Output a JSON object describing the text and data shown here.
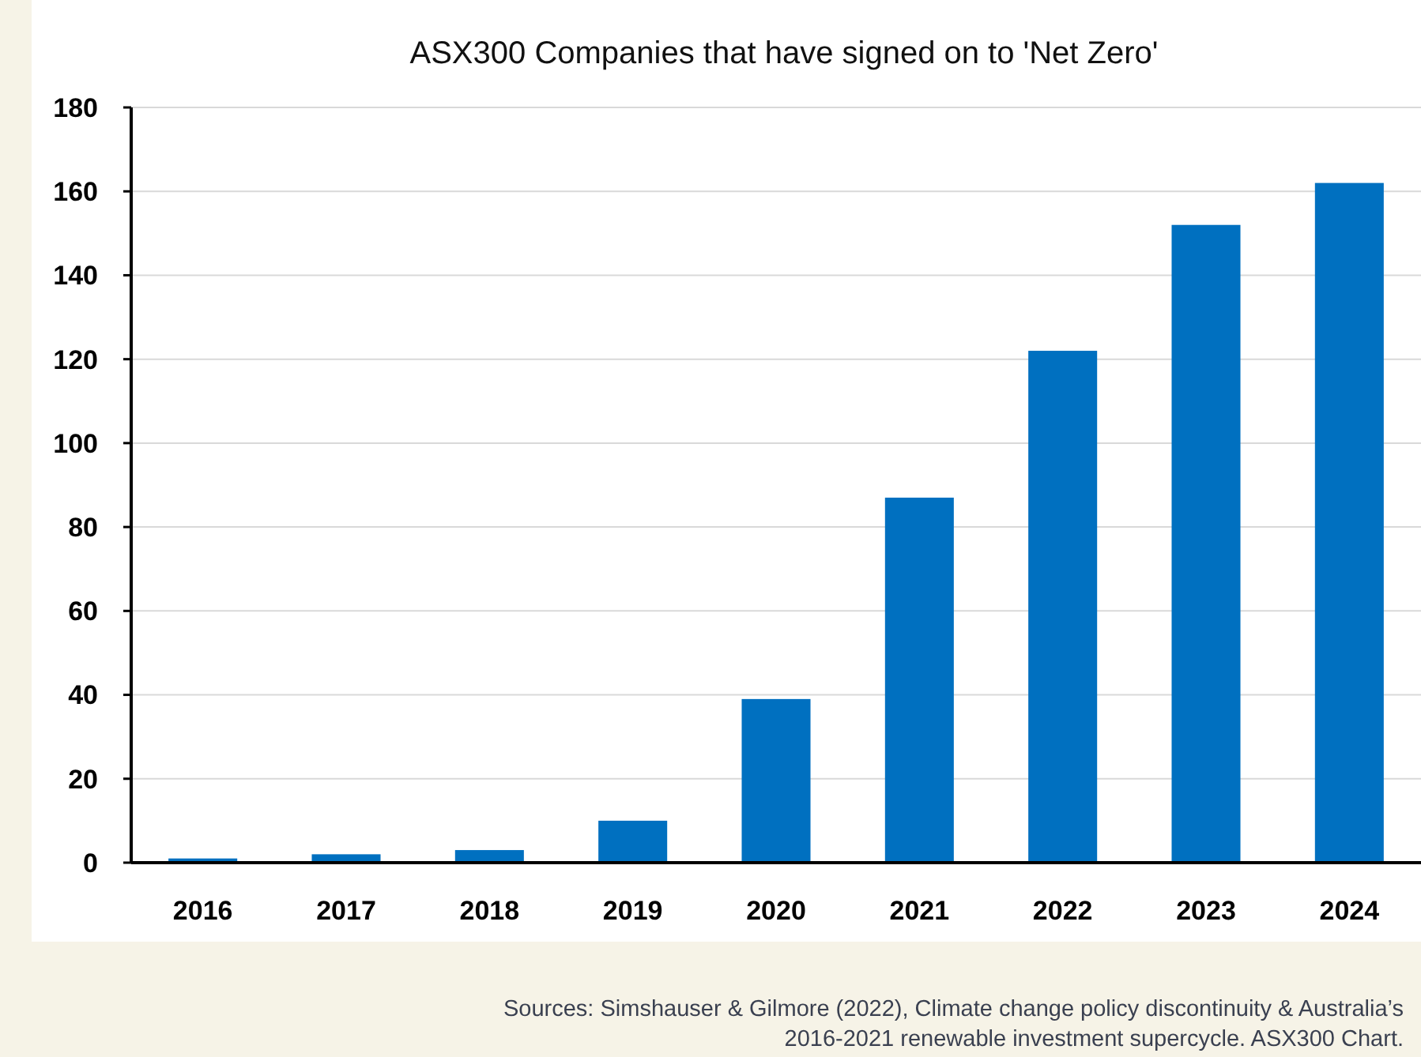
{
  "chart_data": {
    "type": "bar",
    "title": "ASX300 Companies that have signed on to 'Net Zero'",
    "categories": [
      "2016",
      "2017",
      "2018",
      "2019",
      "2020",
      "2021",
      "2022",
      "2023",
      "2024"
    ],
    "values": [
      1,
      2,
      3,
      10,
      39,
      87,
      122,
      152,
      162
    ],
    "color": "#0070c0",
    "ylim": [
      0,
      180
    ],
    "yticks": [
      0,
      20,
      40,
      60,
      80,
      100,
      120,
      140,
      160,
      180
    ],
    "grid": "y",
    "annotations": [
      "Sources:  Simshauser & Gilmore (2022), Climate change policy discontinuity & Australia’s",
      "2016-2021 renewable investment supercycle.  ASX300 Chart."
    ]
  }
}
